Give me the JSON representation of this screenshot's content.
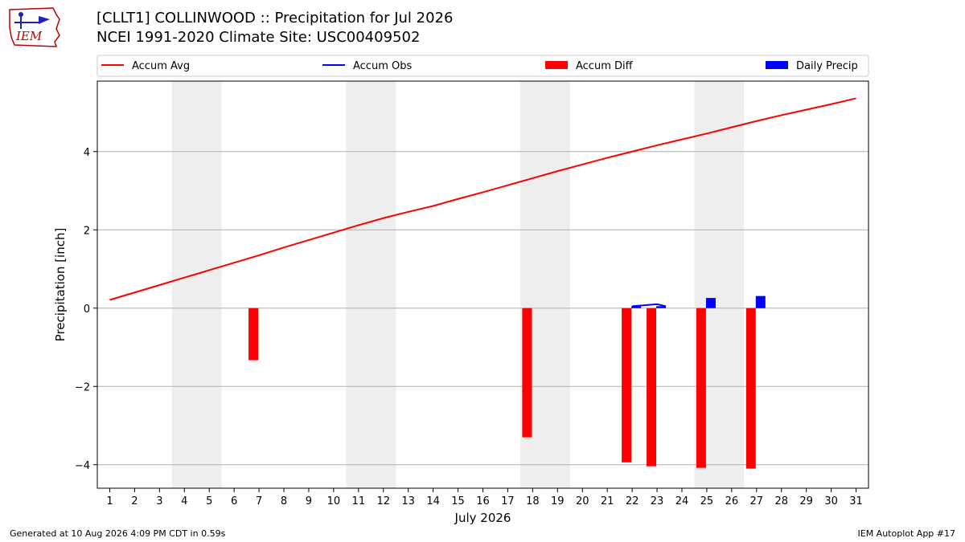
{
  "header": {
    "title": "[CLLT1] COLLINWOOD :: Precipitation for Jul 2026",
    "subtitle": "NCEI 1991-2020 Climate Site: USC00409502",
    "logo_text": "IEM"
  },
  "footer": {
    "generated": "Generated at 10 Aug 2026 4:09 PM CDT in 0.59s",
    "app": "IEM Autoplot App #17"
  },
  "colors": {
    "accum_avg": "#ff0000",
    "accum_obs": "#0000ff",
    "accum_diff": "#ff0000",
    "daily_precip": "#0000ff",
    "weekend_shade": "#eeeeee",
    "grid": "#b0b0b0"
  },
  "chart_data": {
    "type": "bar",
    "xlabel": "July 2026",
    "ylabel": "Precipitation [inch]",
    "xlim": [
      0.5,
      31.5
    ],
    "ylim": [
      -4.6,
      5.8
    ],
    "yticks": [
      -4,
      -2,
      0,
      2,
      4
    ],
    "ytick_labels": [
      "−4",
      "−2",
      "0",
      "2",
      "4"
    ],
    "xticks": [
      1,
      2,
      3,
      4,
      5,
      6,
      7,
      8,
      9,
      10,
      11,
      12,
      13,
      14,
      15,
      16,
      17,
      18,
      19,
      20,
      21,
      22,
      23,
      24,
      25,
      26,
      27,
      28,
      29,
      30,
      31
    ],
    "grid": "y",
    "legend": {
      "placement": "top",
      "entries": [
        {
          "label": "Accum Avg",
          "kind": "line",
          "color": "#ff0000"
        },
        {
          "label": "Accum Obs",
          "kind": "line",
          "color": "#0000ff"
        },
        {
          "label": "Accum Diff",
          "kind": "bar",
          "color": "#ff0000"
        },
        {
          "label": "Daily Precip",
          "kind": "bar",
          "color": "#0000ff"
        }
      ]
    },
    "shaded_ranges": [
      [
        3.5,
        5.5
      ],
      [
        10.5,
        12.5
      ],
      [
        17.5,
        19.5
      ],
      [
        24.5,
        26.5
      ]
    ],
    "series": [
      {
        "name": "Accum Avg",
        "type": "line",
        "x": [
          1,
          2,
          3,
          4,
          5,
          6,
          7,
          8,
          9,
          10,
          11,
          12,
          13,
          14,
          15,
          16,
          17,
          18,
          19,
          20,
          21,
          22,
          23,
          24,
          25,
          26,
          27,
          28,
          29,
          30,
          31
        ],
        "values": [
          0.21,
          0.4,
          0.59,
          0.78,
          0.97,
          1.16,
          1.35,
          1.55,
          1.74,
          1.93,
          2.12,
          2.3,
          2.46,
          2.61,
          2.79,
          2.96,
          3.14,
          3.32,
          3.5,
          3.67,
          3.84,
          4.0,
          4.16,
          4.31,
          4.46,
          4.62,
          4.78,
          4.93,
          5.07,
          5.21,
          5.36
        ]
      },
      {
        "name": "Accum Obs",
        "type": "line",
        "x": [
          22,
          23,
          23.35
        ],
        "values": [
          0.05,
          0.1,
          0.05
        ]
      },
      {
        "name": "Accum Diff",
        "type": "bar",
        "x": [
          7,
          18,
          22,
          23,
          25,
          27
        ],
        "values": [
          -1.33,
          -3.3,
          -3.94,
          -4.04,
          -4.08,
          -4.1
        ]
      },
      {
        "name": "Daily Precip",
        "type": "bar",
        "x": [
          22,
          23,
          25,
          27
        ],
        "values": [
          0.05,
          0.05,
          0.26,
          0.31
        ]
      }
    ]
  }
}
